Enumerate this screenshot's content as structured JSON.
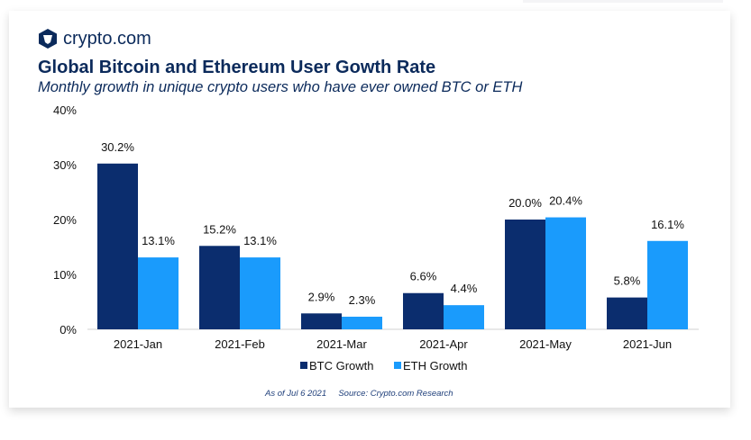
{
  "logo_text": "crypto.com",
  "source": {
    "date": "As of Jul 6 2021",
    "source": "Source: Crypto.com Research"
  },
  "chart_data": {
    "type": "bar",
    "title": "Global Bitcoin and Ethereum User Gowth Rate",
    "subtitle": "Monthly growth in unique crypto users who have ever owned BTC or ETH",
    "categories": [
      "2021-Jan",
      "2021-Feb",
      "2021-Mar",
      "2021-Apr",
      "2021-May",
      "2021-Jun"
    ],
    "series": [
      {
        "name": "BTC Growth",
        "color": "#0b2d6e",
        "values": [
          30.2,
          15.2,
          2.9,
          6.6,
          20.0,
          5.8
        ],
        "labels": [
          "30.2%",
          "15.2%",
          "2.9%",
          "6.6%",
          "20.0%",
          "5.8%"
        ]
      },
      {
        "name": "ETH Growth",
        "color": "#1a9bfc",
        "values": [
          13.1,
          13.1,
          2.3,
          4.4,
          20.4,
          16.1
        ],
        "labels": [
          "13.1%",
          "13.1%",
          "2.3%",
          "4.4%",
          "20.4%",
          "16.1%"
        ]
      }
    ],
    "yticks": [
      "0%",
      "10%",
      "20%",
      "30%",
      "40%"
    ],
    "ylim": [
      0,
      40
    ],
    "legend": "bottom",
    "grid": false
  }
}
